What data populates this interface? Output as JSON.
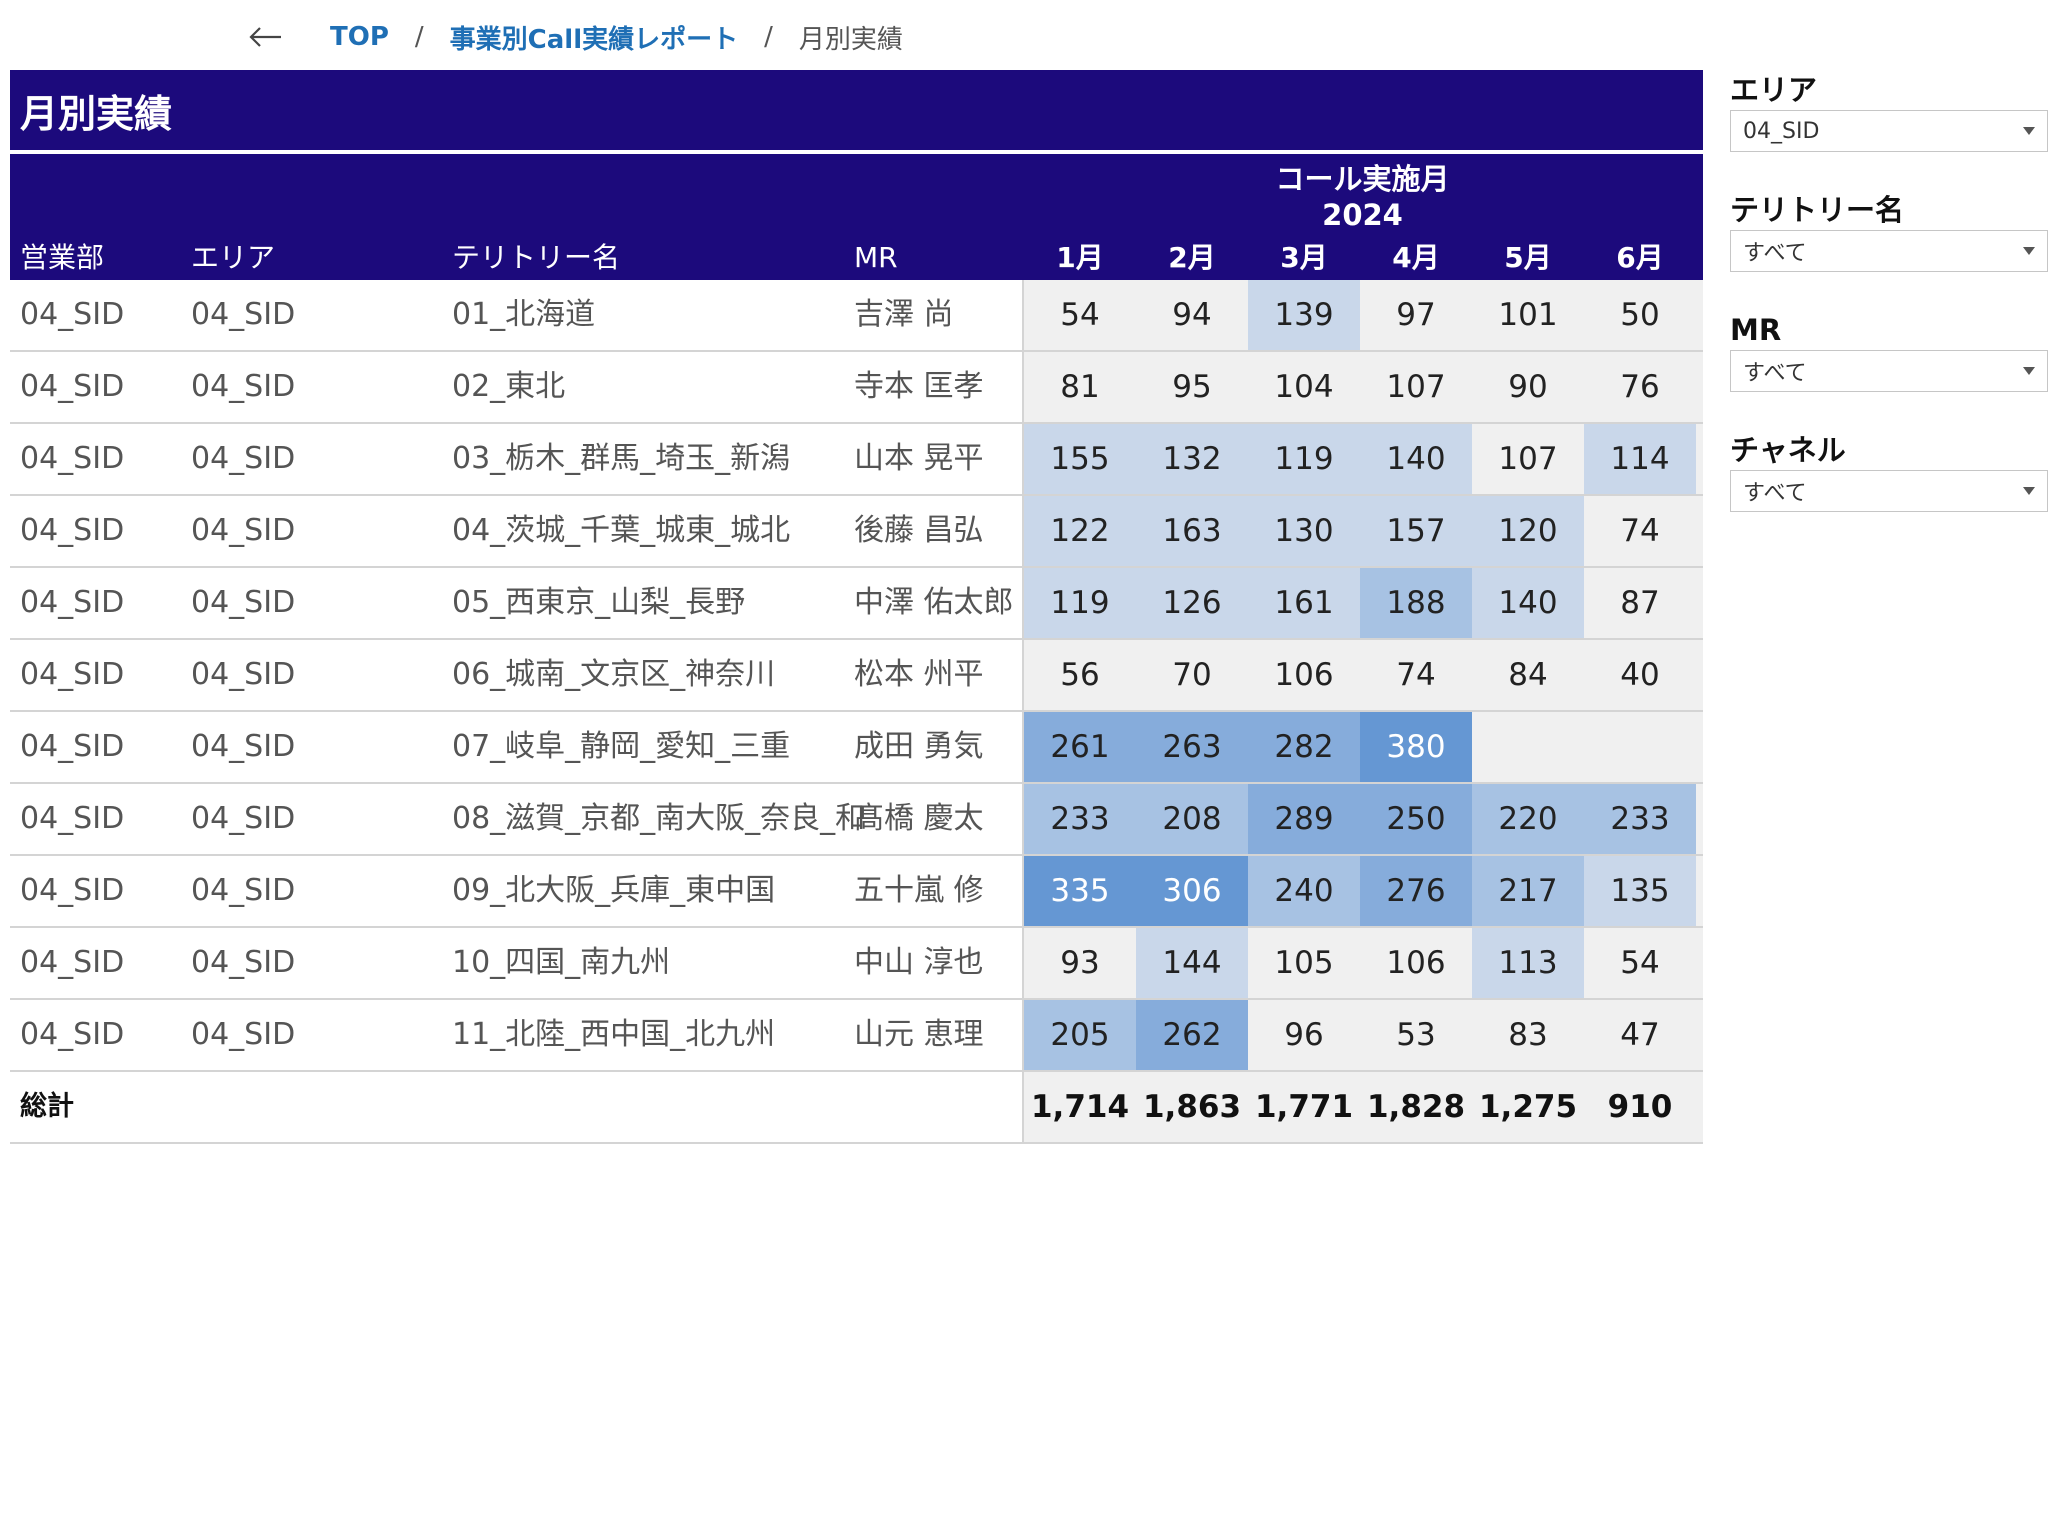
{
  "breadcrumb": {
    "back_icon": "arrow-left-icon",
    "items": [
      "TOP",
      "事業別Call実績レポート",
      "月別実績"
    ],
    "separator": "/"
  },
  "title": "月別実績",
  "table": {
    "header": {
      "group_title": "コール実施月",
      "group_year": "2024",
      "columns": [
        "営業部",
        "エリア",
        "テリトリー名",
        "MR"
      ],
      "months": [
        "1月",
        "2月",
        "3月",
        "4月",
        "5月",
        "6月"
      ]
    },
    "rows": [
      {
        "dept": "04_SID",
        "area": "04_SID",
        "territory": "01_北海道",
        "mr": "吉澤 尚",
        "values": [
          "54",
          "94",
          "139",
          "97",
          "101",
          "50"
        ]
      },
      {
        "dept": "04_SID",
        "area": "04_SID",
        "territory": "02_東北",
        "mr": "寺本 匡孝",
        "values": [
          "81",
          "95",
          "104",
          "107",
          "90",
          "76"
        ]
      },
      {
        "dept": "04_SID",
        "area": "04_SID",
        "territory": "03_栃木_群馬_埼玉_新潟",
        "mr": "山本 晃平",
        "values": [
          "155",
          "132",
          "119",
          "140",
          "107",
          "114"
        ]
      },
      {
        "dept": "04_SID",
        "area": "04_SID",
        "territory": "04_茨城_千葉_城東_城北",
        "mr": "後藤 昌弘",
        "values": [
          "122",
          "163",
          "130",
          "157",
          "120",
          "74"
        ]
      },
      {
        "dept": "04_SID",
        "area": "04_SID",
        "territory": "05_西東京_山梨_長野",
        "mr": "中澤 佑太郎",
        "values": [
          "119",
          "126",
          "161",
          "188",
          "140",
          "87"
        ]
      },
      {
        "dept": "04_SID",
        "area": "04_SID",
        "territory": "06_城南_文京区_神奈川",
        "mr": "松本 州平",
        "values": [
          "56",
          "70",
          "106",
          "74",
          "84",
          "40"
        ]
      },
      {
        "dept": "04_SID",
        "area": "04_SID",
        "territory": "07_岐阜_静岡_愛知_三重",
        "mr": "成田 勇気",
        "values": [
          "261",
          "263",
          "282",
          "380",
          "",
          ""
        ]
      },
      {
        "dept": "04_SID",
        "area": "04_SID",
        "territory": "08_滋賀_京都_南大阪_奈良_和",
        "mr": "髙橋 慶太",
        "values": [
          "233",
          "208",
          "289",
          "250",
          "220",
          "233"
        ]
      },
      {
        "dept": "04_SID",
        "area": "04_SID",
        "territory": "09_北大阪_兵庫_東中国",
        "mr": "五十嵐 修",
        "values": [
          "335",
          "306",
          "240",
          "276",
          "217",
          "135"
        ]
      },
      {
        "dept": "04_SID",
        "area": "04_SID",
        "territory": "10_四国_南九州",
        "mr": "中山 淳也",
        "values": [
          "93",
          "144",
          "105",
          "106",
          "113",
          "54"
        ]
      },
      {
        "dept": "04_SID",
        "area": "04_SID",
        "territory": "11_北陸_西中国_北九州",
        "mr": "山元 恵理",
        "values": [
          "205",
          "262",
          "96",
          "53",
          "83",
          "47"
        ]
      }
    ],
    "total": {
      "label": "総計",
      "values": [
        "1,714",
        "1,863",
        "1,771",
        "1,828",
        "1,275",
        "910"
      ]
    }
  },
  "filters": [
    {
      "label": "エリア",
      "value": "04_SID"
    },
    {
      "label": "テリトリー名",
      "value": "すべて"
    },
    {
      "label": "MR",
      "value": "すべて"
    },
    {
      "label": "チャネル",
      "value": "すべて"
    }
  ],
  "colors": {
    "header_bg": "#1c0a7c",
    "link": "#1f6fb5",
    "heat_0": "#f0f0f0",
    "heat_1": "#c9d7ea",
    "heat_2": "#a7c2e3",
    "heat_3": "#86acdb",
    "heat_4": "#6597d3"
  }
}
